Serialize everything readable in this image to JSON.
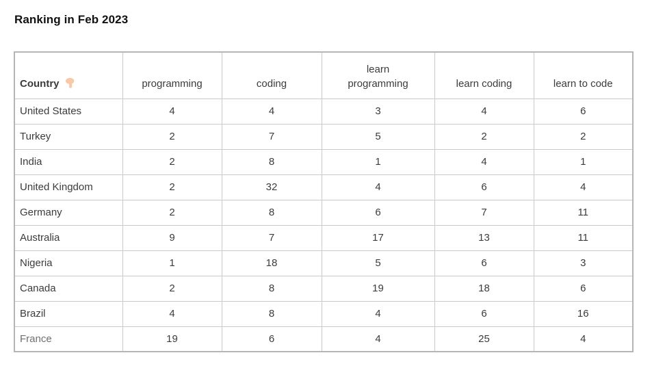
{
  "page": {
    "title": "Ranking in Feb 2023"
  },
  "colors": {
    "outer_border": "#b5b5b5",
    "inner_border": "#c9c9c9",
    "text": "#3b3b3b",
    "muted_row_label": "#6f6f6f",
    "hand_skin": "#f8c9a9"
  },
  "icons": {
    "country_header_icon": "pointing-down-hand"
  },
  "chart_data": {
    "type": "table",
    "title": "Ranking in Feb 2023",
    "columns": [
      "Country",
      "programming",
      "coding",
      "learn programming",
      "learn coding",
      "learn to code"
    ],
    "rows": [
      [
        "United States",
        4,
        4,
        3,
        4,
        6
      ],
      [
        "Turkey",
        2,
        7,
        5,
        2,
        2
      ],
      [
        "India",
        2,
        8,
        1,
        4,
        1
      ],
      [
        "United Kingdom",
        2,
        32,
        4,
        6,
        4
      ],
      [
        "Germany",
        2,
        8,
        6,
        7,
        11
      ],
      [
        "Australia",
        9,
        7,
        17,
        13,
        11
      ],
      [
        "Nigeria",
        1,
        18,
        5,
        6,
        3
      ],
      [
        "Canada",
        2,
        8,
        19,
        18,
        6
      ],
      [
        "Brazil",
        4,
        8,
        4,
        6,
        16
      ],
      [
        "France",
        19,
        6,
        4,
        25,
        4
      ]
    ]
  }
}
